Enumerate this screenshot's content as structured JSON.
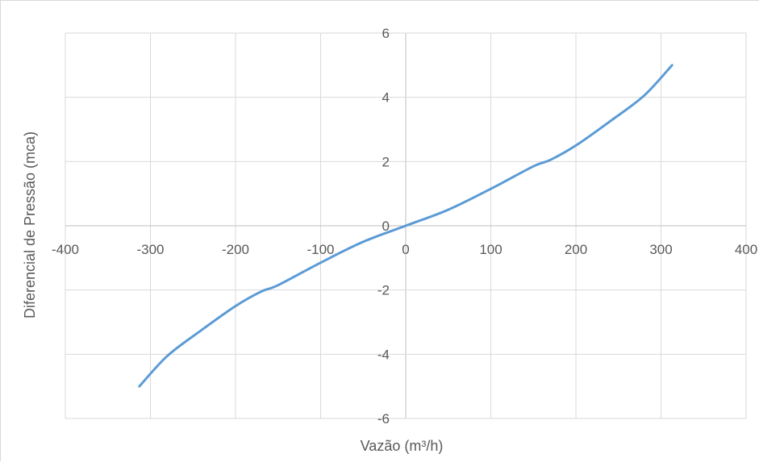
{
  "chart_data": {
    "type": "line",
    "title": "",
    "xlabel": "Vazão (m³/h)",
    "ylabel": "Diferencial de Pressão (mca)",
    "xlim": [
      -400,
      400
    ],
    "ylim": [
      -6,
      6
    ],
    "x_ticks": [
      -400,
      -300,
      -200,
      -100,
      0,
      100,
      200,
      300,
      400
    ],
    "y_ticks": [
      -6,
      -4,
      -2,
      0,
      2,
      4,
      6
    ],
    "x_tick_labels": [
      "-400",
      "-300",
      "-200",
      "-100",
      "0",
      "100",
      "200",
      "300",
      "400"
    ],
    "y_tick_labels": [
      "-6",
      "-4",
      "-2",
      "0",
      "2",
      "4",
      "6"
    ],
    "grid": true,
    "legend": "none",
    "series": [
      {
        "color": "#5b9bd5",
        "x": [
          -313,
          -280,
          -240,
          -200,
          -170,
          -150,
          -100,
          -50,
          0,
          50,
          100,
          150,
          170,
          200,
          240,
          280,
          313
        ],
        "y": [
          -5,
          -4.05,
          -3.25,
          -2.5,
          -2.05,
          -1.85,
          -1.15,
          -0.5,
          0,
          0.5,
          1.15,
          1.85,
          2.05,
          2.5,
          3.25,
          4.05,
          5
        ]
      }
    ]
  }
}
